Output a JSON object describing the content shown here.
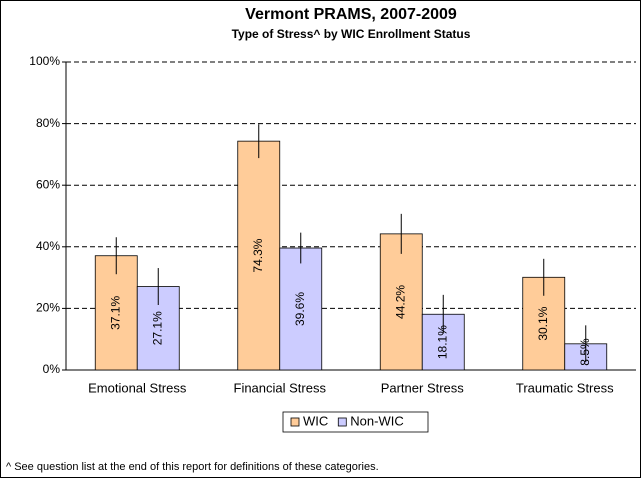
{
  "chart_data": {
    "type": "bar",
    "title": "Vermont PRAMS, 2007-2009",
    "subtitle": "Type of Stress^ by WIC Enrollment Status",
    "categories": [
      "Emotional Stress",
      "Financial Stress",
      "Partner Stress",
      "Traumatic Stress"
    ],
    "series": [
      {
        "name": "WIC",
        "color": "#ffcc99",
        "values": [
          37.1,
          74.3,
          44.2,
          30.1
        ],
        "value_labels": [
          "37.1%",
          "74.3%",
          "44.2%",
          "30.1%"
        ],
        "errors": [
          6,
          5.5,
          6.5,
          6
        ]
      },
      {
        "name": "Non-WIC",
        "color": "#ccccff",
        "values": [
          27.1,
          39.6,
          18.1,
          8.5
        ],
        "value_labels": [
          "27.1%",
          "39.6%",
          "18.1%",
          "8.5%"
        ],
        "errors": [
          6,
          5,
          6.3,
          6
        ]
      }
    ],
    "ylim": [
      0,
      100
    ],
    "yticks": [
      {
        "value": 0,
        "label": "0%"
      },
      {
        "value": 20,
        "label": "20%"
      },
      {
        "value": 40,
        "label": "40%"
      },
      {
        "value": 60,
        "label": "60%"
      },
      {
        "value": 80,
        "label": "80%"
      },
      {
        "value": 100,
        "label": "100%"
      }
    ],
    "grid": true,
    "legend": "bottom",
    "footnote": "^ See question list at the end of this report for definitions of these categories."
  }
}
